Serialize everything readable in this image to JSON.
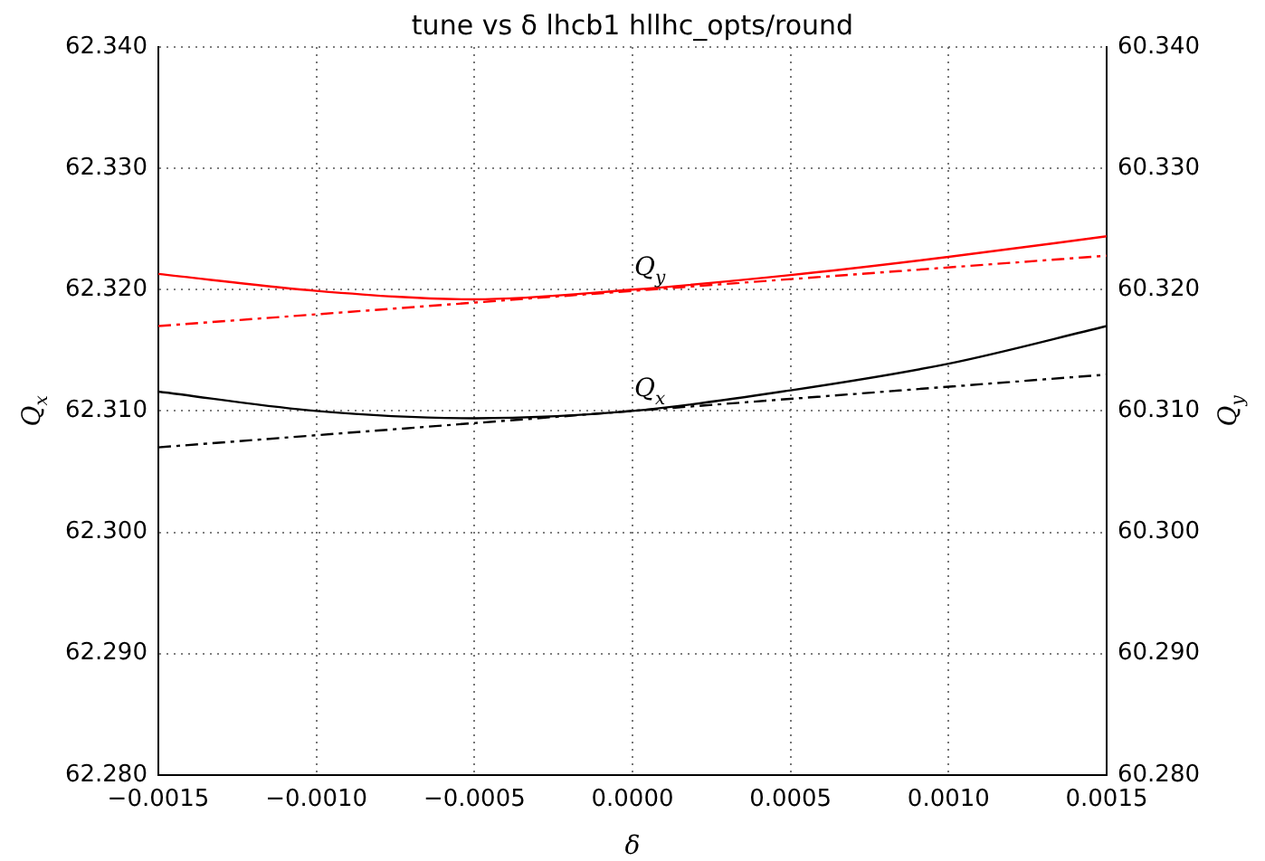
{
  "chart_data": {
    "type": "line",
    "title": "tune vs δ lhcb1 hllhc_opts/round",
    "xlabel": "δ",
    "ylabel": "Q$_{x}$",
    "y2label": "Q$_{y}$",
    "xlim": [
      -0.0015,
      0.0015
    ],
    "xticks": [
      {
        "value": -0.0015,
        "label": "−0.0015"
      },
      {
        "value": -0.001,
        "label": "−0.0010"
      },
      {
        "value": -0.0005,
        "label": "−0.0005"
      },
      {
        "value": 0,
        "label": "0.0000"
      },
      {
        "value": 0.0005,
        "label": "0.0005"
      },
      {
        "value": 0.001,
        "label": "0.0010"
      },
      {
        "value": 0.0015,
        "label": "0.0015"
      }
    ],
    "ylim": [
      62.28,
      62.34
    ],
    "yticks": [
      {
        "value": 62.28,
        "label": "62.280"
      },
      {
        "value": 62.29,
        "label": "62.290"
      },
      {
        "value": 62.3,
        "label": "62.300"
      },
      {
        "value": 62.31,
        "label": "62.310"
      },
      {
        "value": 62.32,
        "label": "62.320"
      },
      {
        "value": 62.33,
        "label": "62.330"
      },
      {
        "value": 62.34,
        "label": "62.340"
      }
    ],
    "y2lim": [
      60.28,
      60.34
    ],
    "y2ticks": [
      {
        "value": 60.28,
        "label": "60.280"
      },
      {
        "value": 60.29,
        "label": "60.290"
      },
      {
        "value": 60.3,
        "label": "60.300"
      },
      {
        "value": 60.31,
        "label": "60.310"
      },
      {
        "value": 60.32,
        "label": "60.320"
      },
      {
        "value": 60.33,
        "label": "60.330"
      },
      {
        "value": 60.34,
        "label": "60.340"
      }
    ],
    "grid": true,
    "legend": false,
    "marker": "none",
    "series": [
      {
        "name": "Q$_{x}$",
        "color": "#000000",
        "line_style": "solid",
        "x": [
          -0.0015,
          -0.001,
          -0.0005,
          0,
          0.0005,
          0.001,
          0.0015
        ],
        "values": [
          62.3116,
          62.31,
          62.3094,
          62.31,
          62.3117,
          62.3139,
          62.317
        ]
      },
      {
        "color": "#000000",
        "line_style": "dashed",
        "x": [
          -0.0015,
          0.0015
        ],
        "values": [
          62.307,
          62.313
        ]
      },
      {
        "name": "Q$_{y}$",
        "color": "#ff0000",
        "axis": "y2",
        "line_style": "solid",
        "x": [
          -0.0015,
          -0.001,
          -0.0005,
          0,
          0.0005,
          0.001,
          0.0015
        ],
        "values": [
          60.3213,
          60.3199,
          60.3192,
          60.32,
          60.3212,
          60.3227,
          60.3244
        ]
      },
      {
        "color": "#ff0000",
        "axis": "y2",
        "line_style": "dashed",
        "x": [
          -0.0015,
          0.0015
        ],
        "values": [
          60.317,
          60.3228
        ]
      }
    ]
  }
}
